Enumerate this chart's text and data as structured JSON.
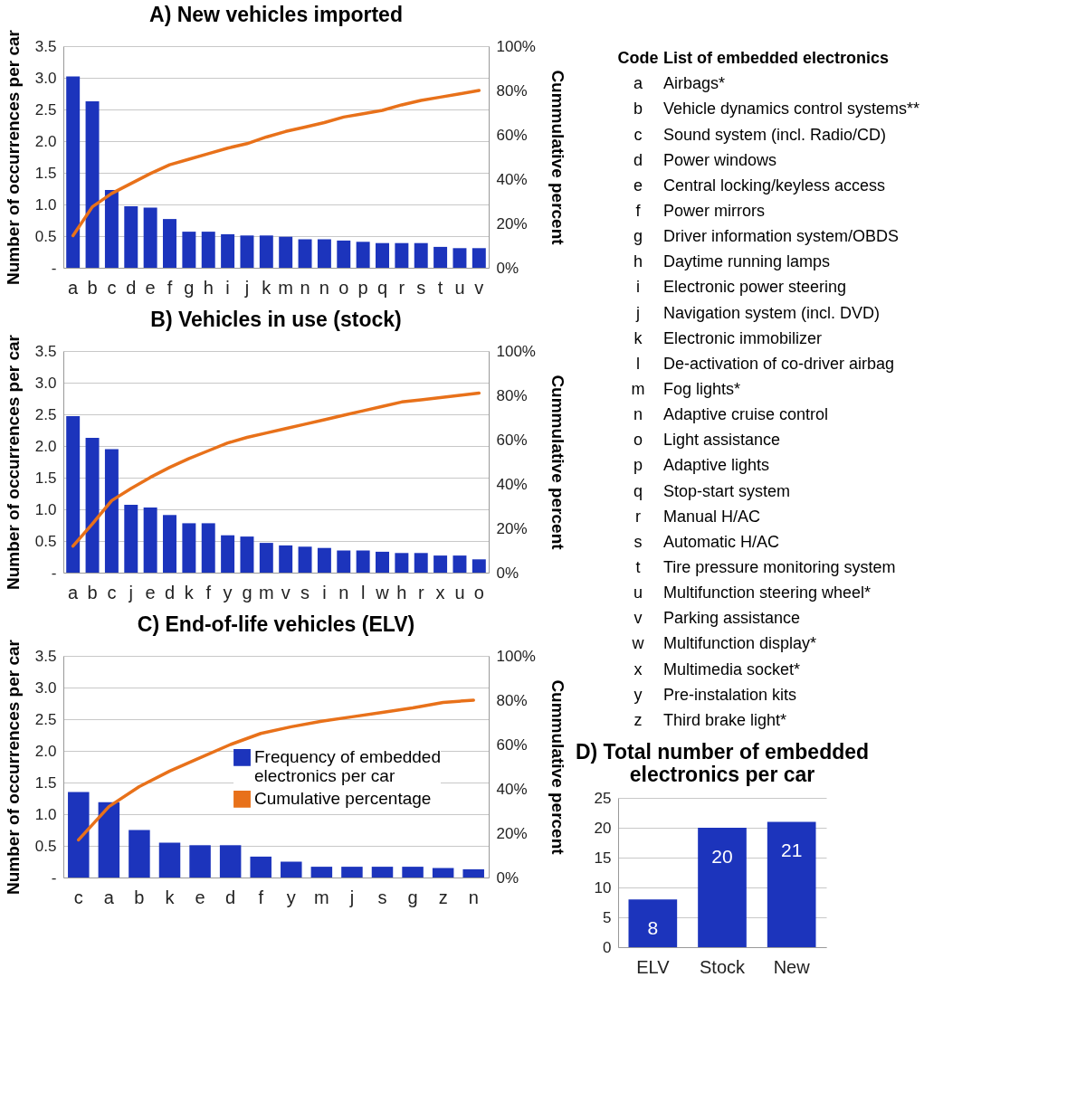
{
  "chart_data": [
    {
      "type": "bar",
      "title": "A) New vehicles imported",
      "ylabel": "Number of occurrences per car",
      "y2label": "Cummulative percent",
      "categories": [
        "a",
        "b",
        "c",
        "d",
        "e",
        "f",
        "g",
        "h",
        "i",
        "j",
        "k",
        "m",
        "n",
        "n",
        "o",
        "p",
        "q",
        "r",
        "s",
        "t",
        "u",
        "v"
      ],
      "series": [
        {
          "type": "bar",
          "color": "#1c34bc",
          "values": [
            3.02,
            2.63,
            1.23,
            0.97,
            0.95,
            0.77,
            0.57,
            0.57,
            0.53,
            0.51,
            0.51,
            0.49,
            0.45,
            0.45,
            0.43,
            0.41,
            0.39,
            0.39,
            0.39,
            0.33,
            0.31,
            0.31
          ]
        },
        {
          "type": "line",
          "axis": "y2",
          "color": "#e8711a",
          "values": [
            14.5,
            27.5,
            33.5,
            38,
            42.5,
            46.5,
            49,
            51.5,
            54,
            56,
            59,
            61.5,
            63.5,
            65.5,
            68,
            69.5,
            71,
            73.5,
            75.5,
            77,
            78.5,
            80
          ]
        }
      ],
      "ylim": [
        0,
        3.5
      ],
      "yticks": [
        {
          "value": 0,
          "label": "-"
        },
        0.5,
        {
          "value": 1,
          "label": "1.0"
        },
        1.5,
        {
          "value": 2,
          "label": "2.0"
        },
        2.5,
        {
          "value": 3,
          "label": "3.0"
        },
        3.5
      ],
      "y2lim": [
        0,
        100
      ],
      "y2ticks": [
        {
          "value": 0,
          "label": "0%"
        },
        {
          "value": 20,
          "label": "20%"
        },
        {
          "value": 40,
          "label": "40%"
        },
        {
          "value": 60,
          "label": "60%"
        },
        {
          "value": 80,
          "label": "80%"
        },
        {
          "value": 100,
          "label": "100%"
        }
      ],
      "grid": "y"
    },
    {
      "type": "bar",
      "title": "B) Vehicles in use (stock)",
      "ylabel": "Number of occurrences per car",
      "y2label": "Cummulative percent",
      "categories": [
        "a",
        "b",
        "c",
        "j",
        "e",
        "d",
        "k",
        "f",
        "y",
        "g",
        "m",
        "v",
        "s",
        "i",
        "n",
        "l",
        "w",
        "h",
        "r",
        "x",
        "u",
        "o"
      ],
      "series": [
        {
          "type": "bar",
          "color": "#1c34bc",
          "values": [
            2.47,
            2.13,
            1.95,
            1.07,
            1.03,
            0.91,
            0.78,
            0.78,
            0.59,
            0.57,
            0.47,
            0.43,
            0.41,
            0.39,
            0.35,
            0.35,
            0.33,
            0.31,
            0.31,
            0.27,
            0.27,
            0.21
          ]
        },
        {
          "type": "line",
          "axis": "y2",
          "color": "#e8711a",
          "values": [
            12,
            22,
            32.5,
            38,
            43,
            47.5,
            51.5,
            55,
            58.5,
            61,
            63,
            65,
            67,
            69,
            71,
            73,
            75,
            77,
            78,
            79,
            80,
            81
          ]
        }
      ],
      "ylim": [
        0,
        3.5
      ],
      "yticks": [
        {
          "value": 0,
          "label": "-"
        },
        0.5,
        {
          "value": 1,
          "label": "1.0"
        },
        1.5,
        {
          "value": 2,
          "label": "2.0"
        },
        2.5,
        {
          "value": 3,
          "label": "3.0"
        },
        3.5
      ],
      "y2lim": [
        0,
        100
      ],
      "y2ticks": [
        {
          "value": 0,
          "label": "0%"
        },
        {
          "value": 20,
          "label": "20%"
        },
        {
          "value": 40,
          "label": "40%"
        },
        {
          "value": 60,
          "label": "60%"
        },
        {
          "value": 80,
          "label": "80%"
        },
        {
          "value": 100,
          "label": "100%"
        }
      ],
      "grid": "y"
    },
    {
      "type": "bar",
      "title": "C) End-of-life vehicles (ELV)",
      "ylabel": "Number of occurrences per car",
      "y2label": "Cummulative percent",
      "categories": [
        "c",
        "a",
        "b",
        "k",
        "e",
        "d",
        "f",
        "y",
        "m",
        "j",
        "s",
        "g",
        "z",
        "n"
      ],
      "series": [
        {
          "type": "bar",
          "name": "Frequency of embedded electronics per car",
          "color": "#1c34bc",
          "values": [
            1.35,
            1.19,
            0.75,
            0.55,
            0.51,
            0.51,
            0.33,
            0.25,
            0.17,
            0.17,
            0.17,
            0.17,
            0.15,
            0.13
          ]
        },
        {
          "type": "line",
          "axis": "y2",
          "name": "Cumulative percentage",
          "color": "#e8711a",
          "values": [
            17,
            32,
            41,
            48,
            54,
            60,
            65,
            68,
            70.5,
            72.5,
            74.5,
            76.5,
            79,
            80
          ]
        }
      ],
      "ylim": [
        0,
        3.5
      ],
      "yticks": [
        {
          "value": 0,
          "label": "-"
        },
        0.5,
        {
          "value": 1,
          "label": "1.0"
        },
        1.5,
        {
          "value": 2,
          "label": "2.0"
        },
        2.5,
        {
          "value": 3,
          "label": "3.0"
        },
        3.5
      ],
      "y2lim": [
        0,
        100
      ],
      "y2ticks": [
        {
          "value": 0,
          "label": "0%"
        },
        {
          "value": 20,
          "label": "20%"
        },
        {
          "value": 40,
          "label": "40%"
        },
        {
          "value": 60,
          "label": "60%"
        },
        {
          "value": 80,
          "label": "80%"
        },
        {
          "value": 100,
          "label": "100%"
        }
      ],
      "grid": "y",
      "legend": "right"
    },
    {
      "type": "other",
      "categories": [
        "a",
        "b",
        "c",
        "d",
        "e",
        "f",
        "g",
        "h",
        "i",
        "j",
        "k",
        "l",
        "m",
        "n",
        "o",
        "p",
        "q",
        "r",
        "s",
        "t",
        "u",
        "v",
        "w",
        "x",
        "y",
        "z"
      ],
      "annotations": [
        "Code",
        "List of embedded electronics",
        "Airbags*",
        "Vehicle dynamics control systems**",
        "Sound system (incl. Radio/CD)",
        "Power windows",
        "Central locking/keyless access",
        "Power mirrors",
        "Driver information system/OBDS",
        "Daytime running lamps",
        "Electronic power steering",
        "Navigation system (incl. DVD)",
        "Electronic immobilizer",
        "De-activation of co-driver airbag",
        "Fog lights*",
        "Adaptive cruise control",
        "Light assistance",
        "Adaptive lights",
        "Stop-start system",
        "Manual H/AC",
        "Automatic H/AC",
        "Tire pressure monitoring system",
        "Multifunction steering wheel*",
        "Parking assistance",
        "Multifunction display*",
        "Multimedia socket*",
        "Pre-instalation kits",
        "Third brake light*"
      ]
    },
    {
      "type": "bar",
      "title": "D) Total number of embedded electronics per car",
      "categories": [
        "ELV",
        "Stock",
        "New"
      ],
      "values": [
        8,
        20,
        21
      ],
      "color": "#1c34bc",
      "ylim": [
        0,
        25
      ],
      "yticks": [
        0,
        5,
        10,
        15,
        20,
        25
      ],
      "grid": "y",
      "data_labels": true
    }
  ]
}
